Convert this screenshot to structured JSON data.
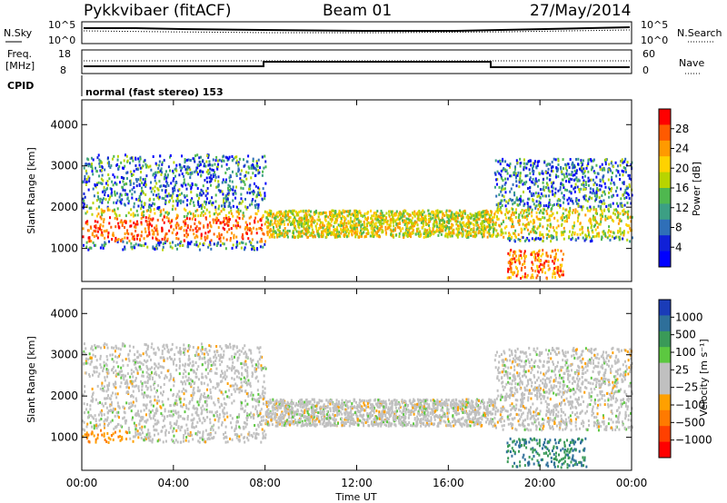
{
  "header": {
    "station": "Pykkvibaer (fitACF)",
    "beam": "Beam 01",
    "date": "27/May/2014"
  },
  "status_panels": {
    "nsky_label": "N.Sky",
    "nsearch_label": "N.Search",
    "left_ticks": [
      "10^5",
      "10^0"
    ],
    "right_ticks": [
      "10^5",
      "10^0"
    ],
    "freq_label_1": "Freq.",
    "freq_label_2": "[MHz]",
    "freq_ticks": [
      "18",
      "8"
    ],
    "nave_ticks": [
      "60",
      "0"
    ],
    "nave_label": "Nave",
    "cpid_label": "CPID",
    "cpid_text": "normal (fast stereo) 153"
  },
  "chart_data": [
    {
      "type": "heatmap",
      "name": "power",
      "ylabel": "Slant Range [km]",
      "ylim": [
        200,
        4600
      ],
      "yticks": [
        "4000",
        "3000",
        "2000",
        "1000"
      ],
      "ytick_values": [
        4000,
        3000,
        2000,
        1000
      ],
      "colorbar_label": "Power [dB]",
      "colorbar_ticks": [
        "28",
        "24",
        "20",
        "16",
        "12",
        "8",
        "4"
      ],
      "colorbar_colors": [
        "#ff0000",
        "#ff5a00",
        "#ff9a00",
        "#ffd200",
        "#b8d400",
        "#4fb84f",
        "#3c9f84",
        "#2f6fb8",
        "#1020d8",
        "#0000ff"
      ]
    },
    {
      "type": "heatmap",
      "name": "velocity",
      "ylabel": "Slant Range [km]",
      "ylim": [
        200,
        4600
      ],
      "yticks": [
        "4000",
        "3000",
        "2000",
        "1000"
      ],
      "ytick_values": [
        4000,
        3000,
        2000,
        1000
      ],
      "colorbar_label": "Velocity [m s⁻¹]",
      "colorbar_ticks": [
        "1000",
        "500",
        "100",
        "25",
        "−25",
        "−100",
        "−500",
        "−1000"
      ],
      "colorbar_colors": [
        "#1a3cb8",
        "#2e6f9a",
        "#3a9a58",
        "#5cc840",
        "#c0c0c0",
        "#c0c0c0",
        "#ffa000",
        "#ff7a00",
        "#ff4000",
        "#ff0000"
      ]
    }
  ],
  "xaxis": {
    "label": "Time UT",
    "ticks": [
      "00:00",
      "04:00",
      "08:00",
      "12:00",
      "16:00",
      "20:00",
      "00:00"
    ],
    "tick_hours": [
      0,
      4,
      8,
      12,
      16,
      20,
      24
    ]
  }
}
